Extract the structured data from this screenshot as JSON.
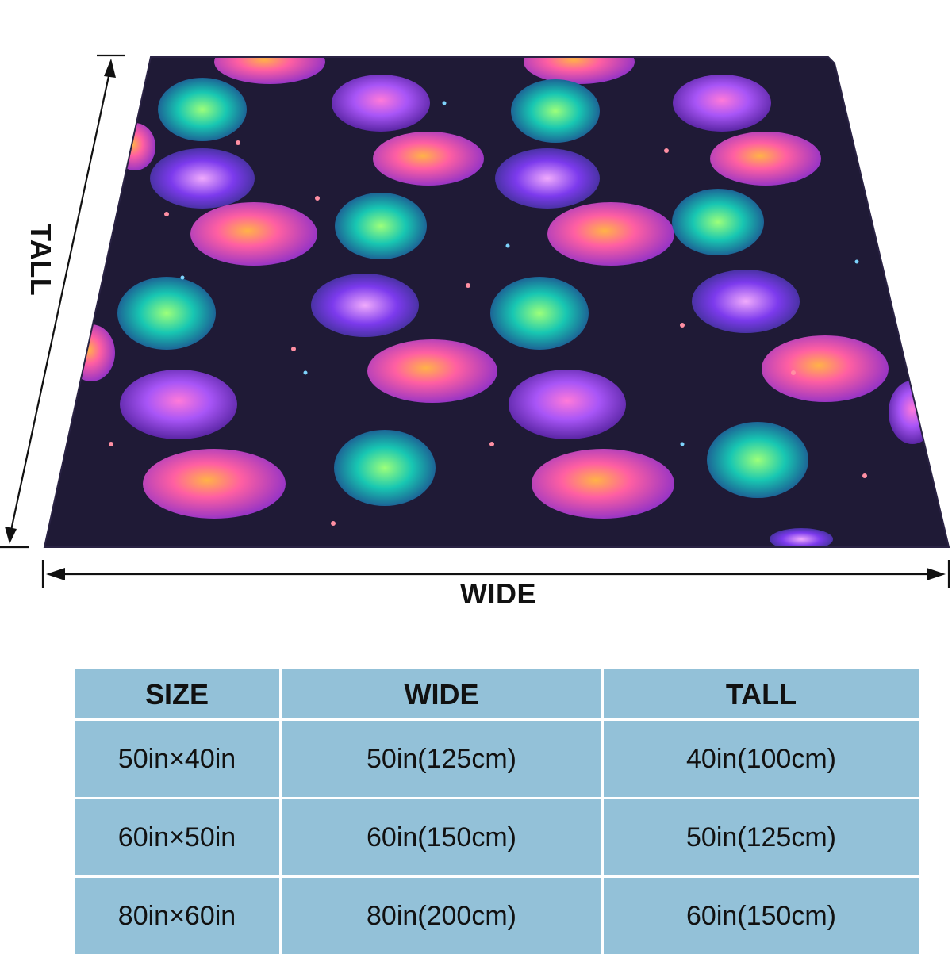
{
  "dimensions": {
    "tall_label": "TALL",
    "wide_label": "WIDE"
  },
  "blanket": {
    "pattern": "galaxy whale sharks on dark navy",
    "background_color": "#1f1a36",
    "shark_colors": [
      "#8b5cf6",
      "#ec4899",
      "#14b8a6",
      "#a855f7"
    ]
  },
  "size_table": {
    "headers": [
      "SIZE",
      "WIDE",
      "TALL"
    ],
    "rows": [
      [
        "50in×40in",
        "50in(125cm)",
        "40in(100cm)"
      ],
      [
        "60in×50in",
        "60in(150cm)",
        "50in(125cm)"
      ],
      [
        "80in×60in",
        "80in(200cm)",
        "60in(150cm)"
      ]
    ],
    "cell_color": "#93c1d8"
  }
}
